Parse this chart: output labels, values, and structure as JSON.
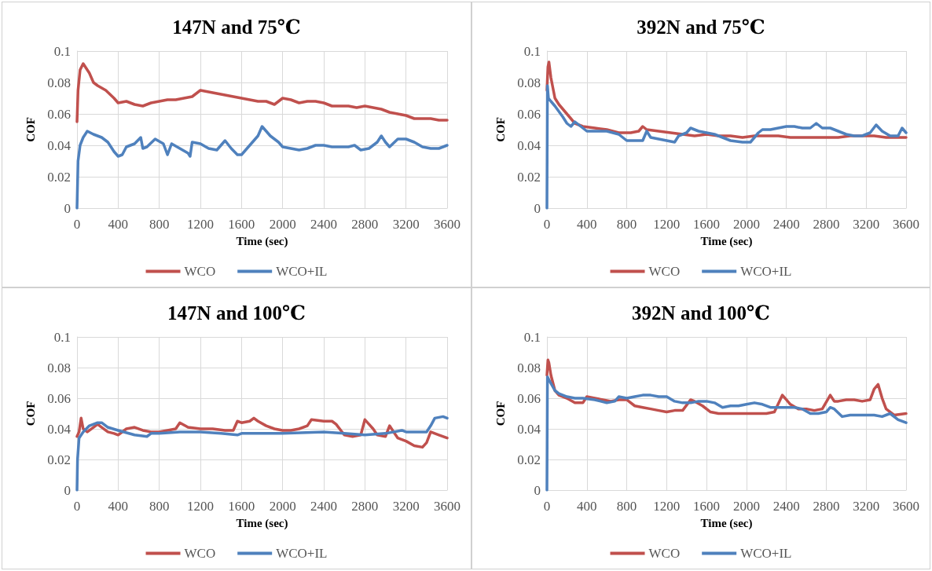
{
  "chart_data": [
    {
      "type": "line",
      "title": "147N and 75℃",
      "xlabel": "Time (sec)",
      "ylabel": "COF",
      "xlim": [
        0,
        3600
      ],
      "xticks": [
        0,
        400,
        800,
        1200,
        1600,
        2000,
        2400,
        2800,
        3200,
        3600
      ],
      "ylim": [
        0,
        0.1
      ],
      "yticks": [
        0,
        0.02,
        0.04,
        0.06,
        0.08,
        0.1
      ],
      "grid": true,
      "legend": "bottom",
      "marker": "none",
      "line_style": "solid",
      "series": [
        {
          "name": "WCO",
          "color": "#c0504d",
          "x": [
            0,
            10,
            30,
            60,
            80,
            120,
            160,
            200,
            280,
            360,
            400,
            480,
            560,
            640,
            720,
            800,
            880,
            960,
            1040,
            1120,
            1200,
            1280,
            1360,
            1440,
            1520,
            1600,
            1680,
            1760,
            1840,
            1920,
            2000,
            2080,
            2160,
            2240,
            2320,
            2400,
            2480,
            2560,
            2640,
            2720,
            2800,
            2880,
            2960,
            3040,
            3120,
            3200,
            3280,
            3360,
            3440,
            3520,
            3600
          ],
          "values": [
            0.055,
            0.075,
            0.088,
            0.092,
            0.09,
            0.086,
            0.08,
            0.078,
            0.075,
            0.07,
            0.067,
            0.068,
            0.066,
            0.065,
            0.067,
            0.068,
            0.069,
            0.069,
            0.07,
            0.071,
            0.075,
            0.074,
            0.073,
            0.072,
            0.071,
            0.07,
            0.069,
            0.068,
            0.068,
            0.066,
            0.07,
            0.069,
            0.067,
            0.068,
            0.068,
            0.067,
            0.065,
            0.065,
            0.065,
            0.064,
            0.065,
            0.064,
            0.063,
            0.061,
            0.06,
            0.059,
            0.057,
            0.057,
            0.057,
            0.056,
            0.056
          ]
        },
        {
          "name": "WCO+IL",
          "color": "#4f81bd",
          "x": [
            0,
            10,
            30,
            60,
            100,
            160,
            240,
            300,
            360,
            400,
            440,
            480,
            560,
            620,
            640,
            680,
            760,
            840,
            880,
            920,
            1000,
            1080,
            1100,
            1120,
            1200,
            1280,
            1360,
            1440,
            1500,
            1560,
            1600,
            1680,
            1760,
            1800,
            1840,
            1880,
            1960,
            2000,
            2080,
            2160,
            2240,
            2320,
            2400,
            2480,
            2560,
            2640,
            2700,
            2760,
            2840,
            2920,
            2960,
            3000,
            3040,
            3120,
            3200,
            3280,
            3360,
            3440,
            3520,
            3600
          ],
          "values": [
            0,
            0.03,
            0.04,
            0.045,
            0.049,
            0.047,
            0.045,
            0.042,
            0.036,
            0.033,
            0.034,
            0.039,
            0.041,
            0.045,
            0.038,
            0.039,
            0.044,
            0.041,
            0.034,
            0.041,
            0.038,
            0.035,
            0.033,
            0.042,
            0.041,
            0.038,
            0.037,
            0.043,
            0.038,
            0.034,
            0.034,
            0.04,
            0.046,
            0.052,
            0.049,
            0.046,
            0.042,
            0.039,
            0.038,
            0.037,
            0.038,
            0.04,
            0.04,
            0.039,
            0.039,
            0.039,
            0.04,
            0.037,
            0.038,
            0.042,
            0.046,
            0.042,
            0.039,
            0.044,
            0.044,
            0.042,
            0.039,
            0.038,
            0.038,
            0.04
          ]
        }
      ]
    },
    {
      "type": "line",
      "title": "392N and 75℃",
      "xlabel": "Time (sec)",
      "ylabel": "COF",
      "xlim": [
        0,
        3600
      ],
      "xticks": [
        0,
        400,
        800,
        1200,
        1600,
        2000,
        2400,
        2800,
        3200,
        3600
      ],
      "ylim": [
        0,
        0.1
      ],
      "yticks": [
        0,
        0.02,
        0.04,
        0.06,
        0.08,
        0.1
      ],
      "grid": true,
      "legend": "bottom",
      "marker": "none",
      "line_style": "solid",
      "series": [
        {
          "name": "WCO",
          "color": "#c0504d",
          "x": [
            0,
            10,
            20,
            40,
            80,
            120,
            200,
            280,
            360,
            480,
            600,
            720,
            840,
            920,
            960,
            1000,
            1120,
            1240,
            1360,
            1480,
            1600,
            1720,
            1840,
            1960,
            2080,
            2200,
            2320,
            2440,
            2560,
            2680,
            2800,
            2920,
            3040,
            3160,
            3280,
            3400,
            3520,
            3600
          ],
          "values": [
            0.075,
            0.09,
            0.093,
            0.083,
            0.07,
            0.066,
            0.06,
            0.054,
            0.052,
            0.051,
            0.05,
            0.048,
            0.048,
            0.049,
            0.052,
            0.05,
            0.049,
            0.048,
            0.047,
            0.046,
            0.047,
            0.046,
            0.046,
            0.045,
            0.046,
            0.046,
            0.046,
            0.045,
            0.045,
            0.045,
            0.045,
            0.045,
            0.046,
            0.046,
            0.046,
            0.045,
            0.045,
            0.045
          ]
        },
        {
          "name": "WCO+IL",
          "color": "#4f81bd",
          "x": [
            0,
            5,
            15,
            40,
            80,
            160,
            200,
            240,
            280,
            320,
            400,
            480,
            600,
            720,
            760,
            800,
            880,
            960,
            1000,
            1040,
            1120,
            1200,
            1280,
            1320,
            1400,
            1440,
            1520,
            1600,
            1680,
            1760,
            1840,
            1960,
            2040,
            2080,
            2120,
            2160,
            2240,
            2320,
            2400,
            2480,
            2560,
            2640,
            2700,
            2760,
            2840,
            2920,
            3000,
            3080,
            3160,
            3240,
            3300,
            3360,
            3440,
            3520,
            3560,
            3600
          ],
          "values": [
            0,
            0.078,
            0.07,
            0.068,
            0.065,
            0.058,
            0.054,
            0.052,
            0.055,
            0.053,
            0.049,
            0.049,
            0.049,
            0.047,
            0.045,
            0.043,
            0.043,
            0.043,
            0.049,
            0.045,
            0.044,
            0.043,
            0.042,
            0.046,
            0.048,
            0.051,
            0.049,
            0.048,
            0.047,
            0.045,
            0.043,
            0.042,
            0.042,
            0.045,
            0.048,
            0.05,
            0.05,
            0.051,
            0.052,
            0.052,
            0.051,
            0.051,
            0.054,
            0.051,
            0.051,
            0.049,
            0.047,
            0.046,
            0.046,
            0.048,
            0.053,
            0.049,
            0.046,
            0.046,
            0.051,
            0.048
          ]
        }
      ]
    },
    {
      "type": "line",
      "title": "147N and 100℃",
      "xlabel": "Time (sec)",
      "ylabel": "COF",
      "xlim": [
        0,
        3600
      ],
      "xticks": [
        0,
        400,
        800,
        1200,
        1600,
        2000,
        2400,
        2800,
        3200,
        3600
      ],
      "ylim": [
        0,
        0.1
      ],
      "yticks": [
        0,
        0.02,
        0.04,
        0.06,
        0.08,
        0.1
      ],
      "grid": true,
      "legend": "bottom",
      "marker": "none",
      "line_style": "solid",
      "series": [
        {
          "name": "WCO",
          "color": "#c0504d",
          "x": [
            0,
            20,
            40,
            60,
            100,
            160,
            200,
            240,
            300,
            360,
            400,
            480,
            560,
            640,
            720,
            800,
            880,
            960,
            1000,
            1080,
            1200,
            1320,
            1440,
            1520,
            1560,
            1600,
            1680,
            1720,
            1760,
            1840,
            1920,
            2000,
            2080,
            2160,
            2240,
            2280,
            2400,
            2480,
            2520,
            2600,
            2680,
            2760,
            2800,
            2840,
            2880,
            2920,
            3000,
            3040,
            3080,
            3120,
            3200,
            3280,
            3360,
            3400,
            3440,
            3520,
            3600
          ],
          "values": [
            0.035,
            0.038,
            0.047,
            0.04,
            0.038,
            0.041,
            0.043,
            0.041,
            0.038,
            0.037,
            0.036,
            0.04,
            0.041,
            0.039,
            0.038,
            0.038,
            0.039,
            0.04,
            0.044,
            0.041,
            0.04,
            0.04,
            0.039,
            0.039,
            0.045,
            0.044,
            0.045,
            0.047,
            0.045,
            0.042,
            0.04,
            0.039,
            0.039,
            0.04,
            0.042,
            0.046,
            0.045,
            0.045,
            0.043,
            0.036,
            0.035,
            0.036,
            0.046,
            0.043,
            0.04,
            0.036,
            0.035,
            0.042,
            0.038,
            0.034,
            0.032,
            0.029,
            0.028,
            0.031,
            0.038,
            0.036,
            0.034
          ]
        },
        {
          "name": "WCO+IL",
          "color": "#4f81bd",
          "x": [
            0,
            5,
            20,
            60,
            120,
            200,
            240,
            300,
            400,
            560,
            680,
            720,
            800,
            1000,
            1200,
            1400,
            1560,
            1600,
            1800,
            2000,
            2400,
            2600,
            2800,
            3000,
            3160,
            3200,
            3400,
            3440,
            3480,
            3560,
            3600
          ],
          "values": [
            0,
            0.02,
            0.034,
            0.038,
            0.042,
            0.044,
            0.044,
            0.041,
            0.039,
            0.036,
            0.035,
            0.037,
            0.037,
            0.038,
            0.038,
            0.037,
            0.036,
            0.037,
            0.037,
            0.037,
            0.038,
            0.037,
            0.036,
            0.037,
            0.039,
            0.038,
            0.038,
            0.042,
            0.047,
            0.048,
            0.047
          ]
        }
      ]
    },
    {
      "type": "line",
      "title": "392N and 100℃",
      "xlabel": "Time (sec)",
      "ylabel": "COF",
      "xlim": [
        0,
        3600
      ],
      "xticks": [
        0,
        400,
        800,
        1200,
        1600,
        2000,
        2400,
        2800,
        3200,
        3600
      ],
      "ylim": [
        0,
        0.1
      ],
      "yticks": [
        0,
        0.02,
        0.04,
        0.06,
        0.08,
        0.1
      ],
      "grid": true,
      "legend": "bottom",
      "marker": "none",
      "line_style": "solid",
      "series": [
        {
          "name": "WCO",
          "color": "#c0504d",
          "x": [
            0,
            10,
            20,
            40,
            80,
            120,
            200,
            280,
            360,
            400,
            480,
            560,
            640,
            720,
            800,
            880,
            960,
            1040,
            1120,
            1200,
            1280,
            1360,
            1440,
            1480,
            1560,
            1640,
            1720,
            1800,
            1880,
            1960,
            2040,
            2120,
            2200,
            2280,
            2360,
            2400,
            2440,
            2520,
            2600,
            2680,
            2760,
            2840,
            2880,
            2920,
            3000,
            3080,
            3160,
            3240,
            3280,
            3320,
            3360,
            3400,
            3480,
            3600
          ],
          "values": [
            0.075,
            0.085,
            0.083,
            0.075,
            0.065,
            0.062,
            0.06,
            0.057,
            0.057,
            0.061,
            0.06,
            0.059,
            0.058,
            0.059,
            0.059,
            0.055,
            0.054,
            0.053,
            0.052,
            0.051,
            0.052,
            0.052,
            0.059,
            0.058,
            0.055,
            0.051,
            0.05,
            0.05,
            0.05,
            0.05,
            0.05,
            0.05,
            0.05,
            0.051,
            0.062,
            0.059,
            0.056,
            0.053,
            0.053,
            0.052,
            0.053,
            0.062,
            0.058,
            0.058,
            0.059,
            0.059,
            0.058,
            0.059,
            0.066,
            0.069,
            0.06,
            0.053,
            0.049,
            0.05
          ]
        },
        {
          "name": "WCO+IL",
          "color": "#4f81bd",
          "x": [
            0,
            5,
            20,
            80,
            120,
            200,
            280,
            360,
            480,
            600,
            680,
            720,
            800,
            880,
            960,
            1040,
            1120,
            1200,
            1280,
            1360,
            1440,
            1520,
            1600,
            1680,
            1760,
            1840,
            1920,
            2000,
            2080,
            2160,
            2240,
            2320,
            2400,
            2480,
            2560,
            2640,
            2720,
            2800,
            2840,
            2880,
            2960,
            3040,
            3120,
            3200,
            3280,
            3360,
            3440,
            3520,
            3600
          ],
          "values": [
            0,
            0.074,
            0.072,
            0.065,
            0.063,
            0.061,
            0.06,
            0.06,
            0.059,
            0.057,
            0.058,
            0.061,
            0.06,
            0.061,
            0.062,
            0.062,
            0.061,
            0.061,
            0.058,
            0.057,
            0.057,
            0.058,
            0.058,
            0.057,
            0.054,
            0.055,
            0.055,
            0.056,
            0.057,
            0.056,
            0.054,
            0.054,
            0.054,
            0.054,
            0.053,
            0.05,
            0.05,
            0.051,
            0.054,
            0.053,
            0.048,
            0.049,
            0.049,
            0.049,
            0.049,
            0.048,
            0.05,
            0.046,
            0.044
          ]
        }
      ]
    }
  ]
}
